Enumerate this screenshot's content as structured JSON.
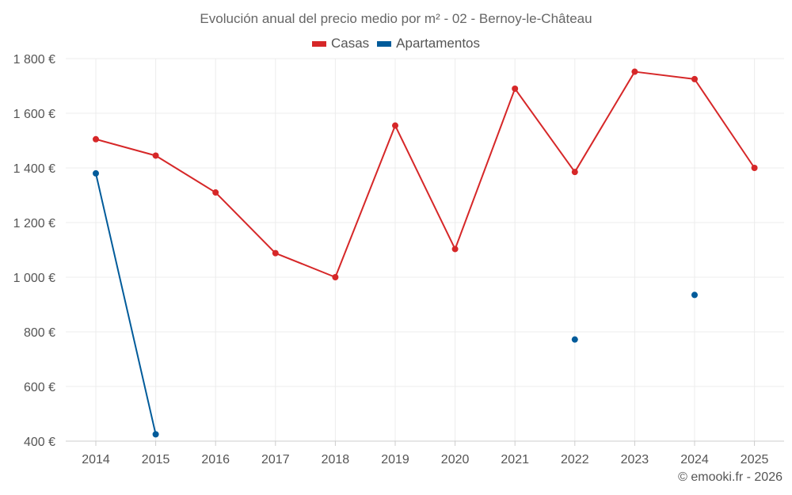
{
  "chart_data": {
    "type": "line",
    "title": "Evolución anual del precio medio por m² - 02 - Bernoy-le-Château",
    "xlabel": "",
    "ylabel": "",
    "categories": [
      "2014",
      "2015",
      "2016",
      "2017",
      "2018",
      "2019",
      "2020",
      "2021",
      "2022",
      "2023",
      "2024",
      "2025"
    ],
    "ylim": [
      400,
      1800
    ],
    "yticks": [
      400,
      600,
      800,
      1000,
      1200,
      1400,
      1600,
      1800
    ],
    "ytick_labels": [
      "400 €",
      "600 €",
      "800 €",
      "1 000 €",
      "1 200 €",
      "1 400 €",
      "1 600 €",
      "1 800 €"
    ],
    "grid": true,
    "legend_position": "top-center",
    "series": [
      {
        "name": "Casas",
        "color": "#d62728",
        "values": [
          1505,
          1445,
          1310,
          1088,
          1000,
          1555,
          1103,
          1690,
          1385,
          1752,
          1725,
          1400
        ]
      },
      {
        "name": "Apartamentos",
        "color": "#005b9a",
        "values": [
          1380,
          425,
          null,
          null,
          null,
          null,
          null,
          null,
          772,
          null,
          935,
          null
        ]
      }
    ],
    "credit": "© emooki.fr - 2026"
  }
}
